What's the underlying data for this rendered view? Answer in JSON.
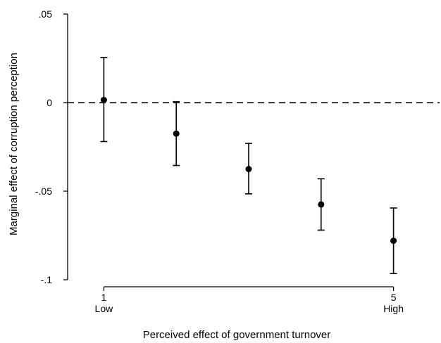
{
  "chart_data": {
    "type": "scatter",
    "subtype": "point-estimates-with-error-bars",
    "title": "",
    "xlabel": "Perceived effect of government turnover",
    "ylabel": "Marginal effect of corruption perception",
    "xlim": [
      0.5,
      5.5
    ],
    "ylim": [
      -0.1,
      0.05
    ],
    "x_ticks": [
      {
        "value": 1,
        "label": "1",
        "sublabel": "Low"
      },
      {
        "value": 5,
        "label": "5",
        "sublabel": "High"
      }
    ],
    "y_ticks": [
      {
        "value": 0.05,
        "label": ".05"
      },
      {
        "value": 0,
        "label": "0"
      },
      {
        "value": -0.05,
        "label": "-.05"
      },
      {
        "value": -0.1,
        "label": "-.1"
      }
    ],
    "reference_line": {
      "y": 0,
      "style": "dashed"
    },
    "grid": false,
    "legend": "none",
    "series": [
      {
        "points": [
          {
            "x": 1,
            "y": 0.0015,
            "lower": -0.022,
            "upper": 0.0255
          },
          {
            "x": 2,
            "y": -0.0175,
            "lower": -0.0355,
            "upper": 0.0005
          },
          {
            "x": 3,
            "y": -0.0375,
            "lower": -0.0515,
            "upper": -0.023
          },
          {
            "x": 4,
            "y": -0.0575,
            "lower": -0.072,
            "upper": -0.043
          },
          {
            "x": 5,
            "y": -0.078,
            "lower": -0.0965,
            "upper": -0.0595
          }
        ]
      }
    ],
    "colors": {
      "marker": "#000000",
      "axis": "#000000",
      "background": "#ffffff"
    }
  }
}
